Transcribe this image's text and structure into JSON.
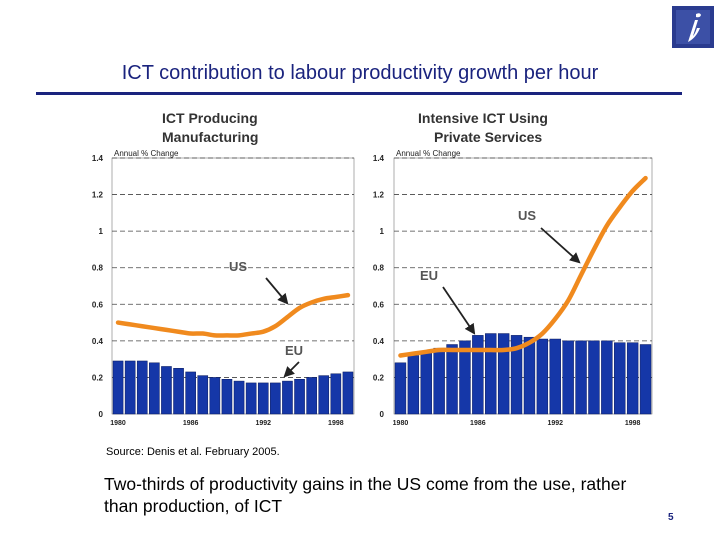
{
  "slide": {
    "title": "ICT contribution to labour productivity growth per hour",
    "source": "Source: Denis et al.  February 2005.",
    "takeaway": "Two-thirds of productivity gains in the US come from the use, rather than production, of ICT",
    "page_number": "5",
    "logo_icon": "i-logo-icon",
    "colors": {
      "title": "#1a237e",
      "bars": "#1537a8",
      "us_line": "#f08a1e"
    }
  },
  "chart_data": [
    {
      "type": "bar+line",
      "title_line1": "ICT Producing",
      "title_line2": "Manufacturing",
      "ylabel": "Annual % Change",
      "ylim": [
        0,
        1.4
      ],
      "yticks": [
        "0",
        "0.2",
        "0.4",
        "0.6",
        "0.8",
        "1",
        "1.2",
        "1.4"
      ],
      "xticks": [
        "1980",
        "1986",
        "1992",
        "1998"
      ],
      "x": [
        1980,
        1981,
        1982,
        1983,
        1984,
        1985,
        1986,
        1987,
        1988,
        1989,
        1990,
        1991,
        1992,
        1993,
        1994,
        1995,
        1996,
        1997,
        1998,
        1999
      ],
      "series": [
        {
          "name": "EU",
          "style": "bar",
          "values": [
            0.29,
            0.29,
            0.29,
            0.28,
            0.26,
            0.25,
            0.23,
            0.21,
            0.2,
            0.19,
            0.18,
            0.17,
            0.17,
            0.17,
            0.18,
            0.19,
            0.2,
            0.21,
            0.22,
            0.23
          ]
        },
        {
          "name": "US",
          "style": "line",
          "values": [
            0.5,
            0.49,
            0.48,
            0.47,
            0.46,
            0.45,
            0.44,
            0.44,
            0.43,
            0.43,
            0.43,
            0.44,
            0.45,
            0.48,
            0.53,
            0.58,
            0.61,
            0.63,
            0.64,
            0.65
          ]
        }
      ],
      "annotations": [
        "US",
        "EU"
      ]
    },
    {
      "type": "bar+line",
      "title_line1": "Intensive ICT Using",
      "title_line2": "Private Services",
      "ylabel": "Annual % Change",
      "ylim": [
        0,
        1.4
      ],
      "yticks": [
        "0",
        "0.2",
        "0.4",
        "0.6",
        "0.8",
        "1",
        "1.2",
        "1.4"
      ],
      "xticks": [
        "1980",
        "1986",
        "1992",
        "1998"
      ],
      "x": [
        1980,
        1981,
        1982,
        1983,
        1984,
        1985,
        1986,
        1987,
        1988,
        1989,
        1990,
        1991,
        1992,
        1993,
        1994,
        1995,
        1996,
        1997,
        1998,
        1999
      ],
      "series": [
        {
          "name": "EU",
          "style": "bar",
          "values": [
            0.28,
            0.32,
            0.34,
            0.36,
            0.38,
            0.4,
            0.43,
            0.44,
            0.44,
            0.43,
            0.42,
            0.41,
            0.41,
            0.4,
            0.4,
            0.4,
            0.4,
            0.39,
            0.39,
            0.38
          ]
        },
        {
          "name": "US",
          "style": "line",
          "values": [
            0.32,
            0.33,
            0.34,
            0.35,
            0.35,
            0.35,
            0.35,
            0.35,
            0.35,
            0.36,
            0.39,
            0.44,
            0.52,
            0.62,
            0.76,
            0.9,
            1.03,
            1.13,
            1.22,
            1.29
          ]
        }
      ],
      "annotations": [
        "US",
        "EU"
      ]
    }
  ]
}
